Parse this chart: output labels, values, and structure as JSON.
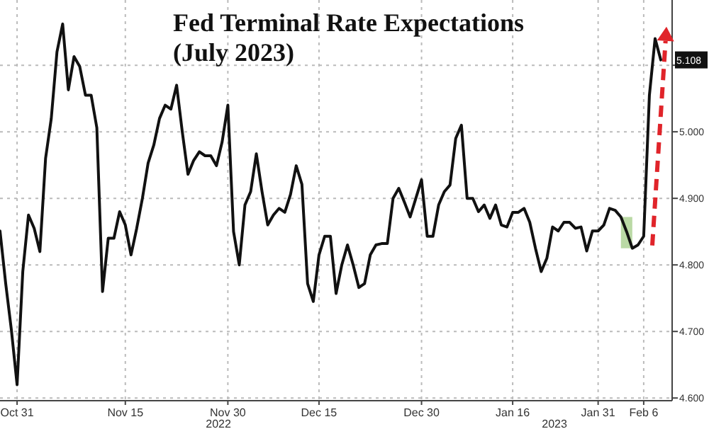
{
  "chart_data": {
    "type": "line",
    "title": "Fed Terminal Rate Expectations",
    "subtitle": "(July 2023)",
    "categories": [
      null,
      null,
      null,
      "Oct 31",
      null,
      null,
      null,
      null,
      null,
      null,
      null,
      null,
      null,
      null,
      null,
      null,
      null,
      null,
      null,
      null,
      null,
      null,
      "Nov 15",
      null,
      null,
      null,
      null,
      null,
      null,
      null,
      null,
      null,
      null,
      null,
      null,
      null,
      null,
      null,
      null,
      null,
      "Nov 30",
      null,
      null,
      null,
      null,
      null,
      null,
      null,
      null,
      null,
      null,
      null,
      null,
      null,
      null,
      null,
      "Dec 15",
      null,
      null,
      null,
      null,
      null,
      null,
      null,
      null,
      null,
      null,
      null,
      null,
      null,
      null,
      null,
      null,
      null,
      "Dec 30",
      null,
      null,
      null,
      null,
      null,
      null,
      null,
      null,
      null,
      null,
      null,
      null,
      null,
      null,
      null,
      "Jan 16",
      null,
      null,
      null,
      null,
      null,
      null,
      null,
      null,
      null,
      null,
      null,
      null,
      null,
      null,
      "Jan 31",
      null,
      null,
      null,
      null,
      null,
      null,
      null,
      "Feb 6",
      null,
      null,
      null
    ],
    "series": [
      {
        "color": "#111111",
        "values": [
          4.851,
          4.772,
          4.702,
          4.62,
          4.79,
          4.875,
          4.855,
          4.82,
          4.96,
          5.02,
          5.12,
          5.162,
          5.063,
          5.113,
          5.098,
          5.055,
          5.055,
          5.006,
          4.76,
          4.84,
          4.84,
          4.88,
          4.86,
          4.815,
          4.855,
          4.9,
          4.953,
          4.98,
          5.02,
          5.04,
          5.034,
          5.07,
          5.0,
          4.936,
          4.957,
          4.97,
          4.964,
          4.964,
          4.949,
          4.985,
          5.04,
          4.85,
          4.8,
          4.89,
          4.91,
          4.967,
          4.91,
          4.86,
          4.875,
          4.885,
          4.879,
          4.906,
          4.949,
          4.921,
          4.772,
          4.745,
          4.815,
          4.843,
          4.843,
          4.757,
          4.8,
          4.83,
          4.8,
          4.766,
          4.772,
          4.815,
          4.83,
          4.832,
          4.832,
          4.9,
          4.915,
          4.894,
          4.872,
          4.9,
          4.928,
          4.843,
          4.843,
          4.89,
          4.91,
          4.92,
          4.99,
          5.01,
          4.9,
          4.9,
          4.88,
          4.89,
          4.87,
          4.89,
          4.86,
          4.857,
          4.879,
          4.879,
          4.885,
          4.864,
          4.825,
          4.79,
          4.81,
          4.857,
          4.851,
          4.864,
          4.864,
          4.855,
          4.857,
          4.821,
          4.851,
          4.851,
          4.86,
          4.885,
          4.882,
          4.872,
          4.85,
          4.825,
          4.83,
          4.843,
          5.055,
          5.14,
          5.108
        ]
      }
    ],
    "ylim": [
      4.596,
      5.198
    ],
    "yticks": [
      {
        "value": 4.6,
        "label": "4.600"
      },
      {
        "value": 4.7,
        "label": "4.700"
      },
      {
        "value": 4.8,
        "label": "4.800"
      },
      {
        "value": 4.9,
        "label": "4.900"
      },
      {
        "value": 5.0,
        "label": "5.000"
      },
      {
        "value": 5.1,
        "label": null
      }
    ],
    "grid": true,
    "line_style": "solid",
    "marker": "none",
    "annotations": [
      {
        "text": "5.108",
        "y": 5.108
      },
      "2022",
      "2023"
    ]
  }
}
